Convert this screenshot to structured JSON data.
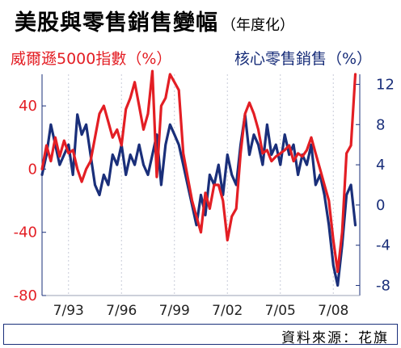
{
  "title": "美股與零售銷售變幅",
  "subtitle": "（年度化）",
  "source": "資料來源：花旗",
  "colors": {
    "index": "#e31e24",
    "retail": "#1a2f7a",
    "grid": "#c7cbd8"
  },
  "chart_data": {
    "type": "line",
    "x_tick_labels": [
      "7/93",
      "7/96",
      "7/99",
      "7/02",
      "7/05",
      "7/08"
    ],
    "x_tick_positions": [
      1993.5,
      1996.5,
      1999.5,
      2002.5,
      2005.5,
      2008.5
    ],
    "x_range": [
      1992.0,
      2010.0
    ],
    "grid": "vertical dotted at x ticks",
    "series": [
      {
        "name": "威爾遜5000指數（%）",
        "axis": "left",
        "color": "#e31e24",
        "ylim": [
          -80,
          60
        ],
        "yticks": [
          40,
          0,
          -40,
          -80
        ],
        "x": [
          1992.0,
          1992.25,
          1992.5,
          1992.75,
          1993.0,
          1993.25,
          1993.5,
          1993.75,
          1994.0,
          1994.25,
          1994.5,
          1994.75,
          1995.0,
          1995.25,
          1995.5,
          1995.75,
          1996.0,
          1996.25,
          1996.5,
          1996.75,
          1997.0,
          1997.25,
          1997.5,
          1997.75,
          1998.0,
          1998.25,
          1998.5,
          1998.75,
          1999.0,
          1999.25,
          1999.5,
          1999.75,
          2000.0,
          2000.25,
          2000.5,
          2000.75,
          2001.0,
          2001.25,
          2001.5,
          2001.75,
          2002.0,
          2002.25,
          2002.5,
          2002.75,
          2003.0,
          2003.25,
          2003.5,
          2003.75,
          2004.0,
          2004.25,
          2004.5,
          2004.75,
          2005.0,
          2005.25,
          2005.5,
          2005.75,
          2006.0,
          2006.25,
          2006.5,
          2006.75,
          2007.0,
          2007.25,
          2007.5,
          2007.75,
          2008.0,
          2008.25,
          2008.5,
          2008.75,
          2009.0,
          2009.25,
          2009.5,
          2009.75
        ],
        "values": [
          0,
          15,
          5,
          20,
          8,
          18,
          10,
          12,
          0,
          -8,
          0,
          5,
          20,
          35,
          40,
          30,
          20,
          25,
          15,
          38,
          45,
          55,
          40,
          25,
          35,
          62,
          -5,
          40,
          45,
          60,
          55,
          50,
          10,
          -5,
          -20,
          -30,
          -40,
          -15,
          -25,
          -10,
          -10,
          -20,
          -45,
          -30,
          -25,
          10,
          35,
          42,
          35,
          25,
          10,
          12,
          5,
          8,
          10,
          12,
          15,
          5,
          10,
          8,
          12,
          20,
          10,
          0,
          -10,
          -20,
          -45,
          -65,
          -40,
          10,
          15,
          60
        ]
      },
      {
        "name": "核心零售銷售（%）",
        "axis": "right",
        "color": "#1a2f7a",
        "ylim": [
          -9,
          13
        ],
        "yticks": [
          12,
          8,
          4,
          0,
          -4,
          -8
        ],
        "x": [
          1992.0,
          1992.25,
          1992.5,
          1992.75,
          1993.0,
          1993.25,
          1993.5,
          1993.75,
          1994.0,
          1994.25,
          1994.5,
          1994.75,
          1995.0,
          1995.25,
          1995.5,
          1995.75,
          1996.0,
          1996.25,
          1996.5,
          1996.75,
          1997.0,
          1997.25,
          1997.5,
          1997.75,
          1998.0,
          1998.25,
          1998.5,
          1998.75,
          1999.0,
          1999.25,
          1999.5,
          1999.75,
          2000.0,
          2000.25,
          2000.5,
          2000.75,
          2001.0,
          2001.25,
          2001.5,
          2001.75,
          2002.0,
          2002.25,
          2002.5,
          2002.75,
          2003.0,
          2003.25,
          2003.5,
          2003.75,
          2004.0,
          2004.25,
          2004.5,
          2004.75,
          2005.0,
          2005.25,
          2005.5,
          2005.75,
          2006.0,
          2006.25,
          2006.5,
          2006.75,
          2007.0,
          2007.25,
          2007.5,
          2007.75,
          2008.0,
          2008.25,
          2008.5,
          2008.75,
          2009.0,
          2009.25,
          2009.5,
          2009.75
        ],
        "values": [
          3,
          5,
          8,
          6,
          4,
          5,
          6,
          3,
          9,
          7,
          8,
          5,
          2,
          1,
          3,
          2,
          5,
          4,
          6,
          3,
          5,
          4,
          6,
          4,
          3,
          5,
          7,
          2,
          6,
          8,
          7,
          6,
          4,
          2,
          0,
          -2,
          1,
          -1,
          3,
          2,
          4,
          1,
          5,
          3,
          2,
          6,
          9,
          5,
          7,
          6,
          4,
          8,
          5,
          6,
          4,
          7,
          5,
          6,
          3,
          5,
          4,
          6,
          2,
          3,
          1,
          -2,
          -6,
          -8,
          -4,
          1,
          2,
          -2
        ]
      }
    ]
  }
}
